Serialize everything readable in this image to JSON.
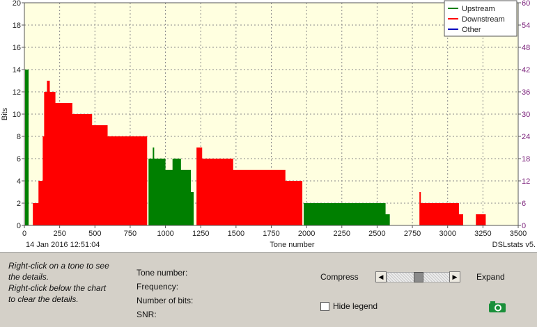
{
  "chart_data": {
    "type": "bar",
    "xlabel": "Tone number",
    "ylabel": "Bits",
    "xlim": [
      0,
      3500
    ],
    "ylim": [
      0,
      20
    ],
    "y2lim": [
      0,
      60
    ],
    "xticks": [
      0,
      250,
      500,
      750,
      1000,
      1250,
      1500,
      1750,
      2000,
      2250,
      2500,
      2750,
      3000,
      3250,
      3500
    ],
    "yticks": [
      0,
      2,
      4,
      6,
      8,
      10,
      12,
      14,
      16,
      18,
      20
    ],
    "y2ticks": [
      0,
      6,
      12,
      18,
      24,
      30,
      36,
      42,
      48,
      54,
      60
    ],
    "grid": true,
    "legend_position": "top-right",
    "series": [
      {
        "name": "Upstream",
        "color": "#007f00",
        "points": [
          [
            0,
            0
          ],
          [
            5,
            14
          ],
          [
            30,
            0
          ],
          [
            870,
            0
          ],
          [
            880,
            6
          ],
          [
            910,
            7
          ],
          [
            920,
            6
          ],
          [
            1000,
            5
          ],
          [
            1050,
            6
          ],
          [
            1110,
            5
          ],
          [
            1180,
            3
          ],
          [
            1200,
            0
          ],
          [
            1970,
            0
          ],
          [
            1980,
            2
          ],
          [
            2340,
            2
          ],
          [
            2560,
            1
          ],
          [
            2590,
            0
          ]
        ]
      },
      {
        "name": "Downstream",
        "color": "#ff0000",
        "points": [
          [
            0,
            0
          ],
          [
            60,
            2
          ],
          [
            100,
            4
          ],
          [
            130,
            8
          ],
          [
            140,
            12
          ],
          [
            160,
            13
          ],
          [
            180,
            12
          ],
          [
            220,
            11
          ],
          [
            340,
            10
          ],
          [
            480,
            9
          ],
          [
            590,
            8
          ],
          [
            870,
            0
          ],
          [
            1200,
            0
          ],
          [
            1220,
            7
          ],
          [
            1260,
            6
          ],
          [
            1480,
            5
          ],
          [
            1850,
            4
          ],
          [
            1970,
            0
          ],
          [
            2800,
            3
          ],
          [
            2810,
            2
          ],
          [
            3080,
            1
          ],
          [
            3110,
            0
          ],
          [
            3200,
            1
          ],
          [
            3270,
            0
          ]
        ]
      },
      {
        "name": "Other",
        "color": "#0000c0",
        "points": []
      }
    ]
  },
  "chart_footer": {
    "timestamp": "14 Jan 2016 12:51:04",
    "brand": "DSLstats v5."
  },
  "panel": {
    "help_line1": "Right-click on a tone to see the details.",
    "help_line2": "Right-click below the chart to clear the details.",
    "tone_number_label": "Tone number:",
    "frequency_label": "Frequency:",
    "bits_label": "Number of bits:",
    "snr_label": "SNR:",
    "compress_label": "Compress",
    "expand_label": "Expand",
    "hide_legend_label": "Hide legend",
    "hide_legend_checked": false,
    "slider_value": 0.5,
    "camera_icon": "camera-icon",
    "accent_green": "#1a8f3a"
  }
}
